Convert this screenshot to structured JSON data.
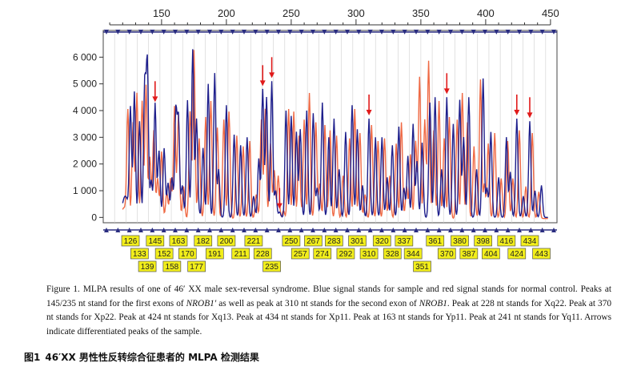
{
  "chart_data": {
    "type": "line",
    "x_ticks": [
      150,
      200,
      250,
      300,
      350,
      400,
      450
    ],
    "xlim": [
      105,
      455
    ],
    "ylim": [
      -200,
      7000
    ],
    "y_ticks": [
      0,
      1000,
      2000,
      3000,
      4000,
      5000,
      6000
    ],
    "y_tick_labels": [
      "0",
      "1 000",
      "2 000",
      "3 000",
      "4 000",
      "5 000",
      "6 000"
    ],
    "grid": true,
    "legend": "none",
    "colors": {
      "sample": "#1e1f8c",
      "control": "#ef6a45",
      "arrow": "#e01a1a",
      "box_fill": "#f2ee1a",
      "grid_line": "#cfcfcf"
    },
    "series": [
      {
        "x": [
          126,
          129,
          133,
          137,
          139,
          142,
          145,
          148,
          152,
          155,
          158,
          161,
          163,
          166,
          170,
          174,
          177,
          182,
          186,
          191,
          194,
          200,
          206,
          211,
          216,
          221,
          225,
          228,
          231,
          235,
          238,
          241,
          246,
          250,
          254,
          257,
          262,
          267,
          270,
          274,
          279,
          283,
          287,
          292,
          297,
          301,
          305,
          310,
          315,
          320,
          324,
          328,
          333,
          337,
          340,
          344,
          347,
          351,
          357,
          361,
          366,
          370,
          375,
          380,
          383,
          387,
          393,
          398,
          401,
          404,
          410,
          416,
          419,
          424,
          429,
          434,
          438,
          443
        ],
        "values": [
          4000,
          4700,
          3600,
          4900,
          5700,
          1300,
          4200,
          2400,
          2500,
          1200,
          1400,
          3900,
          3600,
          1100,
          4300,
          6200,
          3600,
          2600,
          5000,
          5400,
          1800,
          4200,
          3100,
          2700,
          3000,
          800,
          2200,
          4800,
          4500,
          5100,
          1000,
          200,
          4000,
          3800,
          3200,
          3300,
          4000,
          3900,
          1100,
          4300,
          3000,
          3700,
          1800,
          3200,
          4200,
          3300,
          1200,
          3700,
          3000,
          3000,
          1500,
          2700,
          3400,
          1100,
          2300,
          3500,
          2100,
          2800,
          4300,
          4500,
          1800,
          4500,
          3500,
          4400,
          3000,
          4500,
          1800,
          5200,
          1100,
          3200,
          1500,
          3000,
          1700,
          3700,
          800,
          3600,
          1000,
          1200
        ]
      },
      {
        "x": [
          124,
          128,
          131,
          135,
          138,
          141,
          144,
          147,
          150,
          154,
          157,
          160,
          163,
          167,
          172,
          175,
          179,
          184,
          188,
          193,
          198,
          202,
          208,
          213,
          218,
          223,
          227,
          230,
          234,
          237,
          240,
          244,
          248,
          252,
          256,
          260,
          264,
          269,
          272,
          276,
          280,
          285,
          290,
          295,
          299,
          303,
          307,
          312,
          317,
          322,
          326,
          331,
          335,
          339,
          342,
          346,
          349,
          353,
          356,
          360,
          364,
          368,
          372,
          378,
          382,
          386,
          391,
          396,
          399,
          402,
          407,
          412,
          417,
          421,
          426,
          431,
          436,
          441
        ],
        "values": [
          4100,
          3600,
          4700,
          4400,
          5000,
          2300,
          3300,
          1500,
          2500,
          1000,
          1500,
          4200,
          3900,
          1200,
          4000,
          6300,
          3000,
          3800,
          4400,
          3400,
          3700,
          4000,
          3100,
          2700,
          2900,
          900,
          3700,
          4100,
          2800,
          1800,
          1600,
          300,
          4100,
          4000,
          3100,
          3700,
          4700,
          3600,
          1300,
          3500,
          3300,
          3100,
          1600,
          3000,
          4100,
          3200,
          900,
          3500,
          2900,
          3000,
          1600,
          2800,
          3600,
          1200,
          2400,
          2900,
          5300,
          3700,
          5900,
          3300,
          4400,
          3000,
          3800,
          3700,
          4700,
          3600,
          2700,
          5200,
          1300,
          2800,
          3200,
          1500,
          2900,
          1500,
          3300,
          1200,
          3200,
          1000
        ]
      }
    ],
    "arrows_at": [
      145,
      228,
      235,
      241,
      310,
      370,
      424,
      434
    ],
    "peak_labels_row1": [
      "126",
      "145",
      "163",
      "182",
      "200",
      "221",
      "250",
      "267",
      "283",
      "301",
      "320",
      "337",
      "361",
      "380",
      "398",
      "416",
      "434"
    ],
    "peak_labels_row2": [
      "133",
      "152",
      "170",
      "191",
      "211",
      "228",
      "257",
      "274",
      "292",
      "310",
      "328",
      "344",
      "370",
      "387",
      "404",
      "424",
      "443"
    ],
    "peak_labels_row3": [
      "139",
      "158",
      "177",
      "235",
      "351"
    ]
  },
  "caption": {
    "label": "Figure 1.",
    "part1": "MLPA results of one of 46′ XX male sex-reversal syndrome. Blue signal stands for sample and red signal stands for normal control. Peaks at 145/235 nt stand for the first exons of ",
    "italic1": "NROB1′",
    "part2": " as well as peak at 310 nt stands for the second exon of ",
    "italic2": "NROB1",
    "part3": ". Peak at 228 nt stands for Xq22. Peak at 370 nt stands for Xp22. Peak at 424 nt stands for Xq13. Peak at 434 nt stands for Xp11. Peak at 163 nt stands for Yp11. Peak at 241 nt stands for Yq11. Arrows indicate differentiated peaks of the sample."
  },
  "cn_caption": {
    "label": "图1",
    "text": "46′XX 男性性反转综合征患者的 MLPA 检测结果"
  }
}
